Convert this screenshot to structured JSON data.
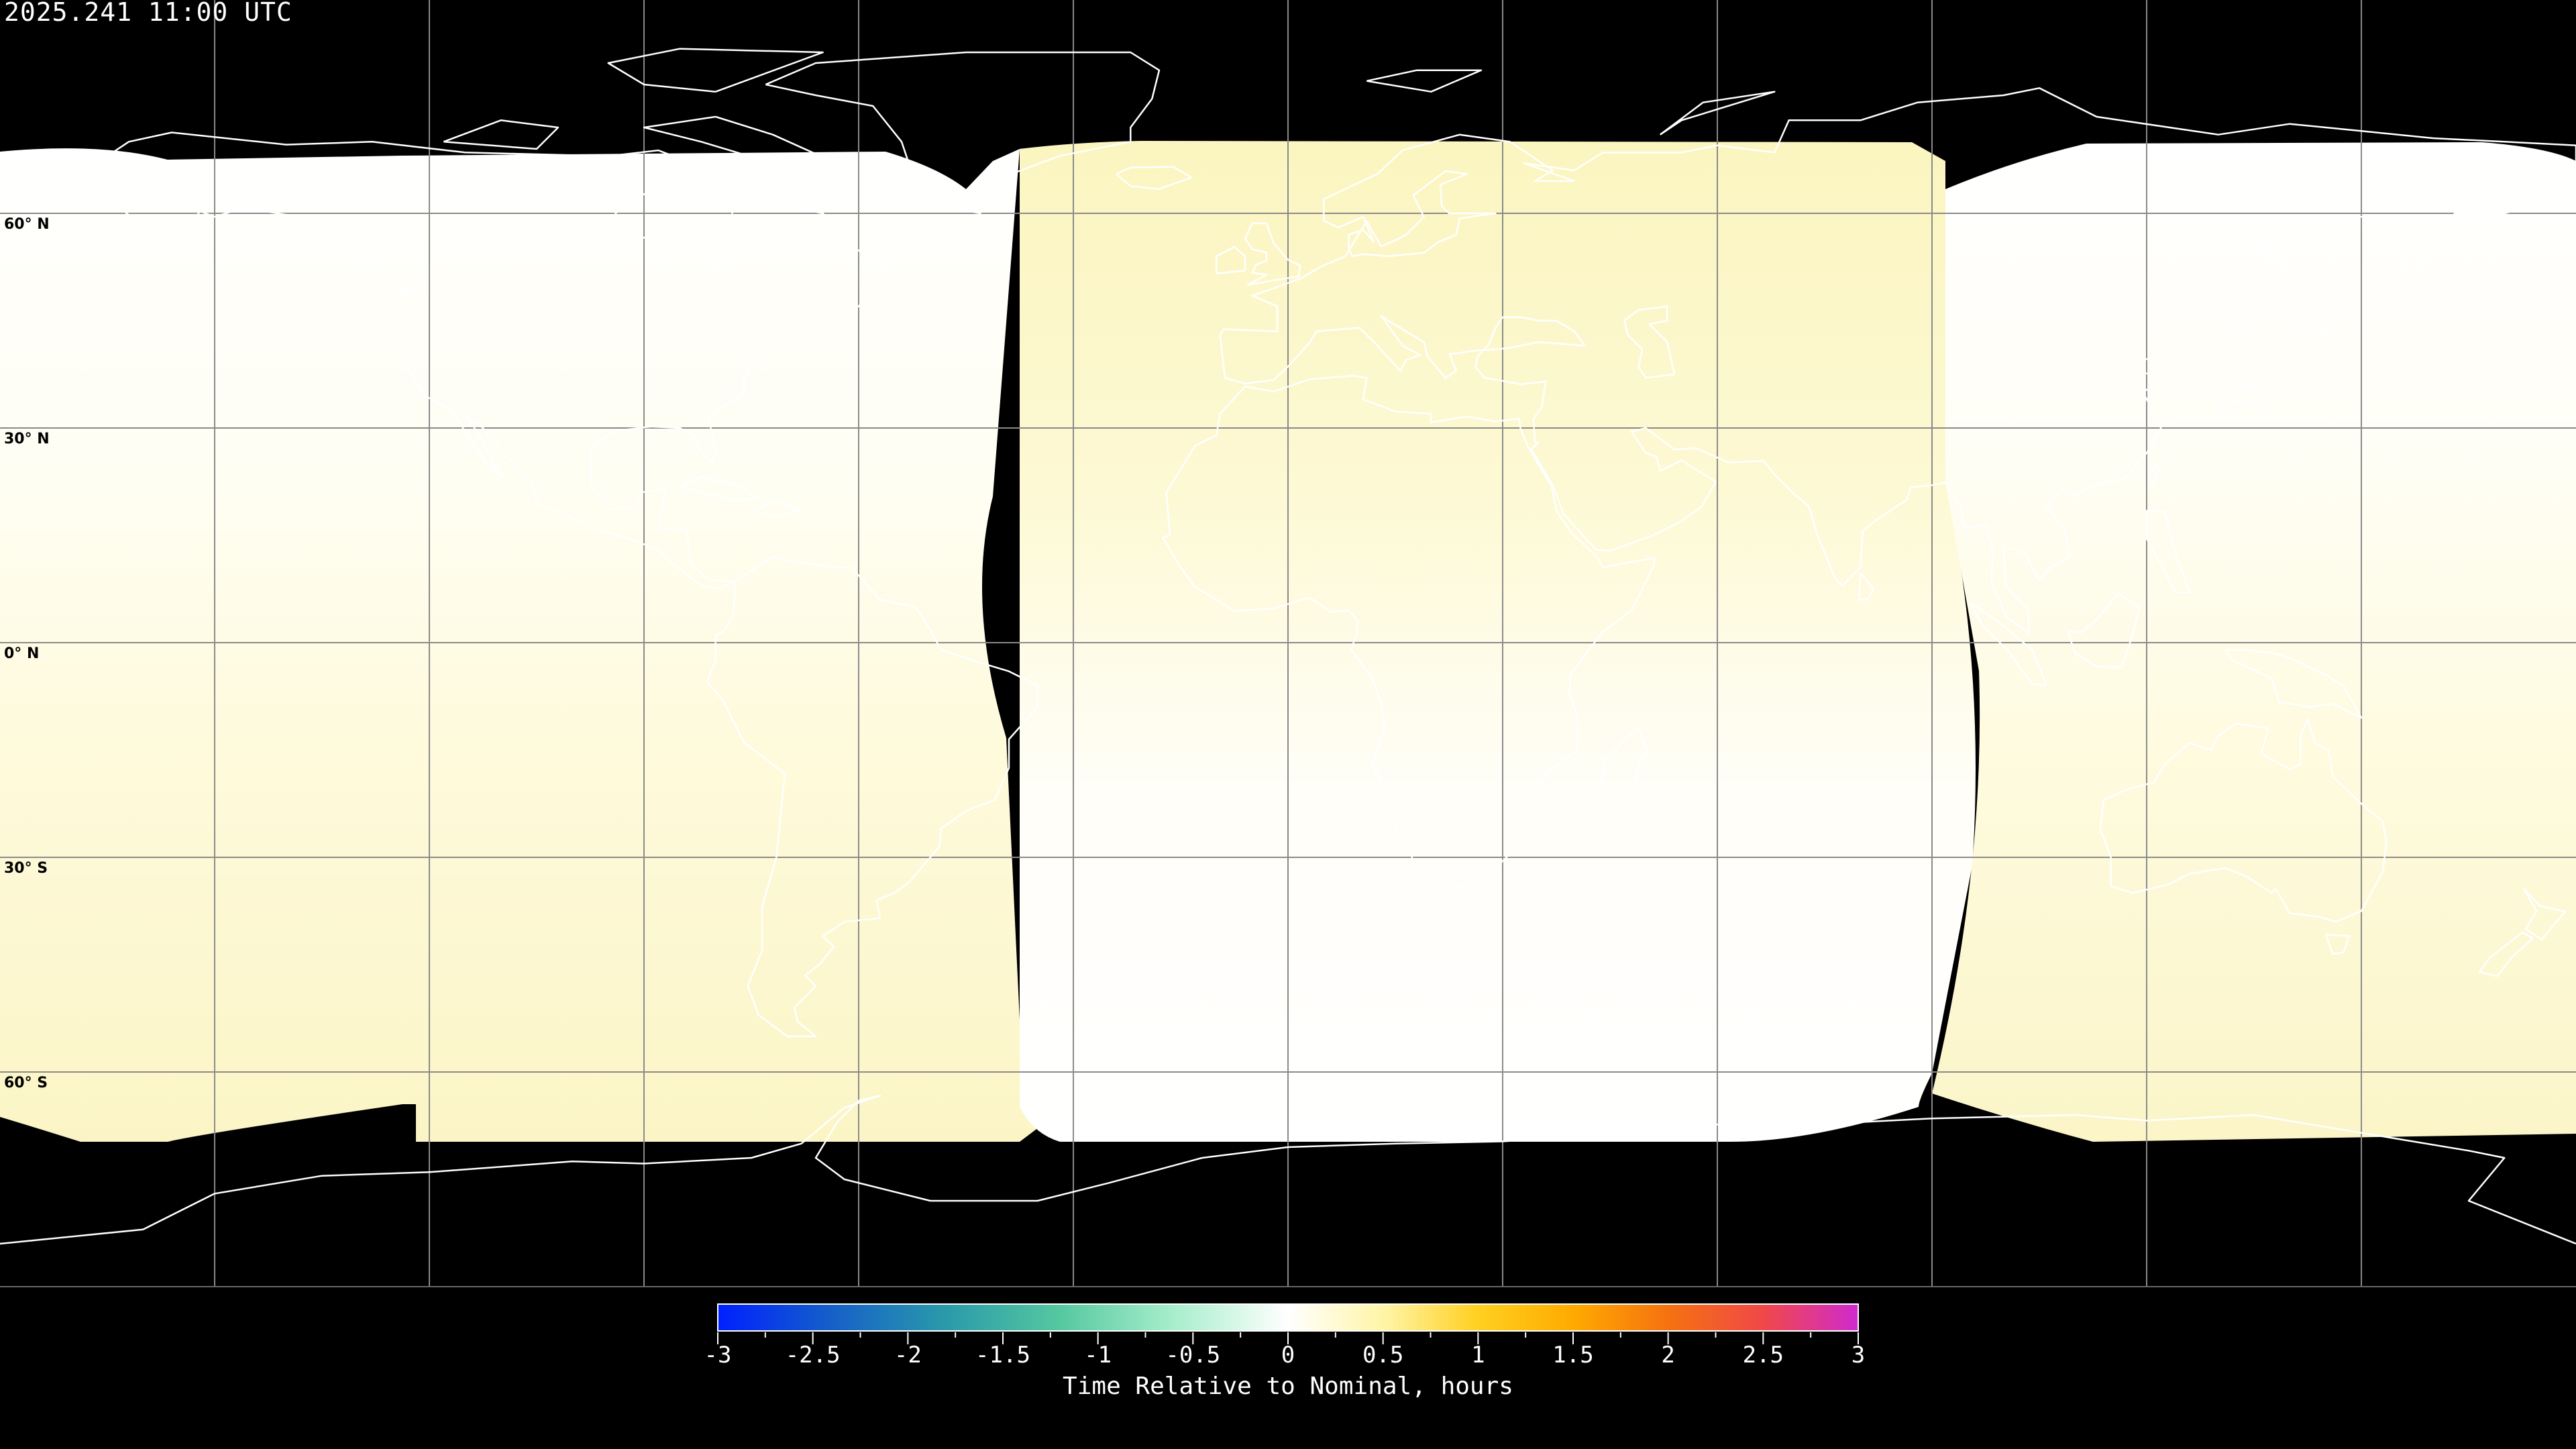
{
  "title": "2025.241 11:00 UTC",
  "latitude_labels": [
    "60° N",
    "30° N",
    "0° N",
    "30° S",
    "60° S"
  ],
  "projection": "equirectangular, 30° graticule",
  "colorbar": {
    "title": "Time Relative to Nominal, hours",
    "min": -3,
    "max": 3,
    "tick_labels": [
      "-3",
      "-2.5",
      "-2",
      "-1.5",
      "-1",
      "-0.5",
      "0",
      "0.5",
      "1",
      "1.5",
      "2",
      "2.5",
      "3"
    ],
    "colors": [
      "#0020ff",
      "#1560c8",
      "#2a9aaa",
      "#55c8a0",
      "#a8eecc",
      "#ffffff",
      "#fff5a8",
      "#ffd020",
      "#ffaa00",
      "#f57210",
      "#f04848",
      "#d02ad0"
    ]
  },
  "field_colors": {
    "no_data": "#000000",
    "near_zero": "#ffffff",
    "slightly_late": "#fbf5c4"
  }
}
